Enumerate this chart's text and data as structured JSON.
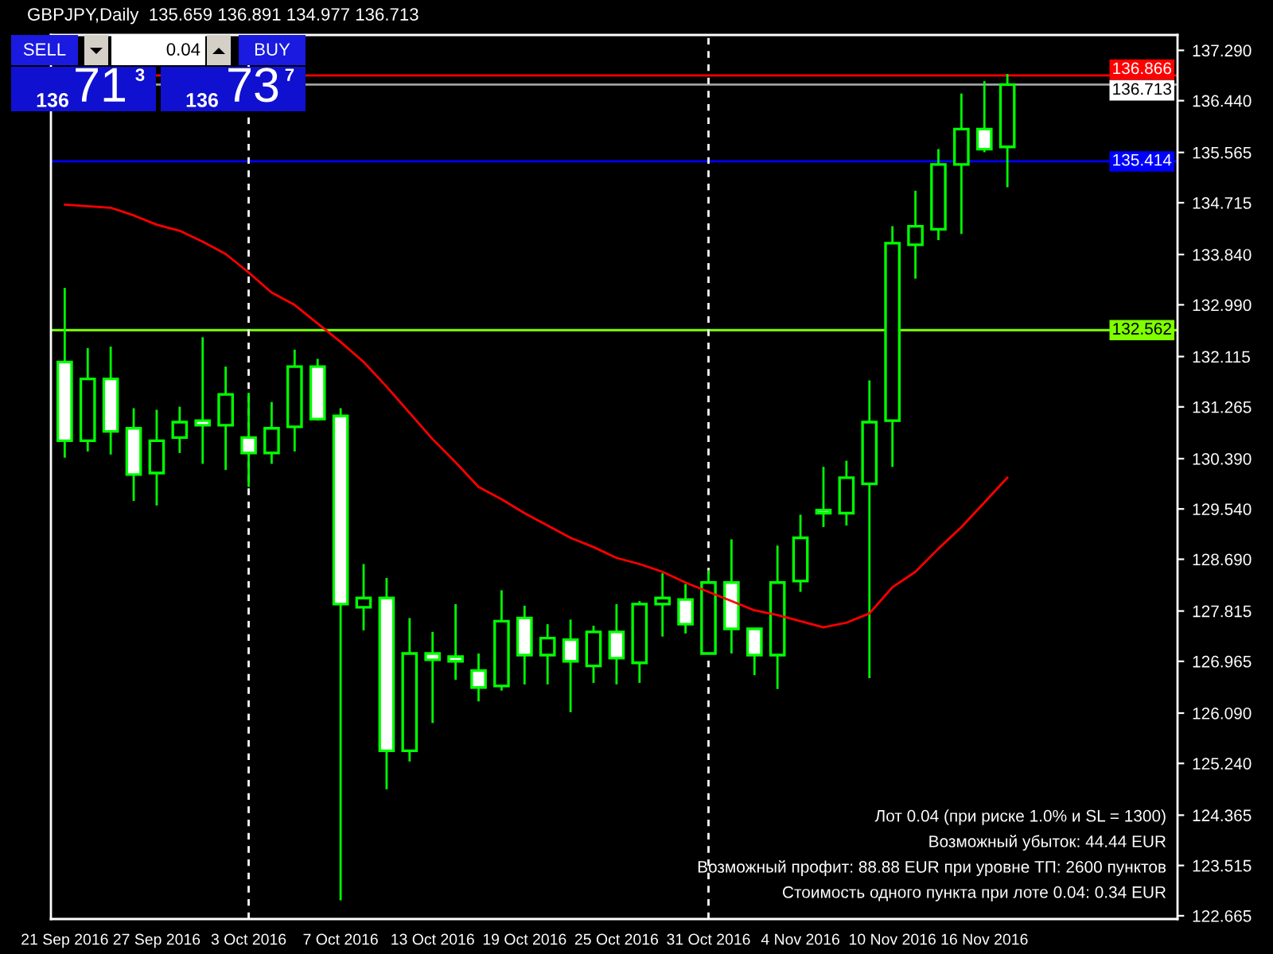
{
  "chart_data": {
    "type": "candlestick",
    "title": "GBPJPY,Daily  135.659 136.891 134.977 136.713",
    "categories": [
      "21 Sep 2016",
      null,
      null,
      null,
      "27 Sep 2016",
      null,
      null,
      null,
      "3 Oct 2016",
      null,
      null,
      null,
      "7 Oct 2016",
      null,
      null,
      null,
      "13 Oct 2016",
      null,
      null,
      null,
      "19 Oct 2016",
      null,
      null,
      null,
      "25 Oct 2016",
      null,
      null,
      null,
      "31 Oct 2016",
      null,
      null,
      null,
      "4 Nov 2016",
      null,
      null,
      null,
      "10 Nov 2016",
      null,
      null,
      null,
      "16 Nov 2016",
      null
    ],
    "series": [
      {
        "color": "#00ff00",
        "ohlc": [
          [
            132.024,
            133.275,
            130.407,
            130.694
          ],
          [
            130.694,
            132.258,
            130.512,
            131.737
          ],
          [
            131.737,
            132.284,
            130.46,
            130.851
          ],
          [
            130.903,
            131.242,
            129.677,
            130.121
          ],
          [
            130.147,
            131.216,
            129.599,
            130.694
          ],
          [
            130.746,
            131.268,
            130.486,
            131.007
          ],
          [
            131.033,
            132.441,
            130.303,
            130.955
          ],
          [
            130.955,
            131.946,
            130.199,
            131.476
          ],
          [
            130.746,
            131.503,
            129.912,
            130.486
          ],
          [
            130.486,
            131.346,
            130.303,
            130.903
          ],
          [
            130.929,
            132.232,
            130.512,
            131.946
          ],
          [
            131.946,
            132.076,
            131.033,
            131.059
          ],
          [
            131.111,
            131.242,
            122.925,
            127.931
          ],
          [
            127.879,
            128.609,
            127.488,
            128.035
          ],
          [
            128.035,
            128.374,
            124.802,
            125.454
          ],
          [
            125.454,
            127.696,
            125.272,
            127.097
          ],
          [
            127.097,
            127.462,
            125.923,
            126.992
          ],
          [
            127.044,
            127.931,
            126.653,
            126.966
          ],
          [
            126.81,
            127.097,
            126.288,
            126.523
          ],
          [
            126.549,
            128.166,
            126.471,
            127.644
          ],
          [
            127.696,
            127.905,
            126.575,
            127.07
          ],
          [
            127.07,
            127.592,
            126.575,
            127.357
          ],
          [
            127.331,
            127.67,
            126.106,
            126.966
          ],
          [
            126.888,
            127.566,
            126.601,
            127.462
          ],
          [
            127.462,
            127.931,
            126.575,
            127.018
          ],
          [
            126.94,
            127.983,
            126.601,
            127.931
          ],
          [
            127.931,
            128.452,
            127.384,
            128.035
          ],
          [
            128.009,
            128.27,
            127.435,
            127.592
          ],
          [
            127.097,
            128.504,
            127.097,
            128.296
          ],
          [
            128.296,
            129.026,
            127.097,
            127.514
          ],
          [
            127.514,
            127.514,
            126.732,
            127.07
          ],
          [
            127.07,
            128.921,
            126.497,
            128.296
          ],
          [
            128.322,
            129.443,
            128.139,
            129.052
          ],
          [
            129.521,
            130.251,
            129.235,
            129.469
          ],
          [
            129.469,
            130.355,
            129.26,
            130.069
          ],
          [
            129.964,
            131.711,
            126.68,
            131.007
          ],
          [
            131.033,
            134.318,
            130.251,
            134.031
          ],
          [
            134.005,
            134.918,
            133.432,
            134.318
          ],
          [
            134.266,
            135.622,
            134.083,
            135.361
          ],
          [
            135.361,
            136.56,
            134.188,
            135.96
          ],
          [
            135.96,
            136.769,
            135.569,
            135.621
          ],
          [
            135.659,
            136.891,
            134.977,
            136.713
          ]
        ]
      },
      {
        "type": "line",
        "color": "#ff0000",
        "values": [
          134.683,
          134.657,
          134.631,
          134.501,
          134.344,
          134.24,
          134.057,
          133.849,
          133.536,
          133.197,
          132.988,
          132.675,
          132.362,
          132.024,
          131.607,
          131.164,
          130.72,
          130.329,
          129.912,
          129.704,
          129.469,
          129.26,
          129.052,
          128.896,
          128.713,
          128.609,
          128.478,
          128.296,
          128.139,
          127.983,
          127.827,
          127.748,
          127.644,
          127.54,
          127.618,
          127.774,
          128.217,
          128.478,
          128.869,
          129.234,
          129.651,
          130.069
        ]
      }
    ],
    "ylim": [
      122.61,
      137.55
    ],
    "yticks": [
      {
        "value": 137.29,
        "label": "137.290"
      },
      {
        "value": 136.44,
        "label": "136.440"
      },
      {
        "value": 135.565,
        "label": "135.565"
      },
      {
        "value": 134.715,
        "label": "134.715"
      },
      {
        "value": 133.84,
        "label": "133.840"
      },
      {
        "value": 132.99,
        "label": "132.990"
      },
      {
        "value": 132.115,
        "label": "132.115"
      },
      {
        "value": 131.265,
        "label": "131.265"
      },
      {
        "value": 130.39,
        "label": "130.390"
      },
      {
        "value": 129.54,
        "label": "129.540"
      },
      {
        "value": 128.69,
        "label": "128.690"
      },
      {
        "value": 127.815,
        "label": "127.815"
      },
      {
        "value": 126.965,
        "label": "126.965"
      },
      {
        "value": 126.09,
        "label": "126.090"
      },
      {
        "value": 125.24,
        "label": "125.240"
      },
      {
        "value": 124.365,
        "label": "124.365"
      },
      {
        "value": 123.515,
        "label": "123.515"
      },
      {
        "value": 122.665,
        "label": "122.665"
      }
    ],
    "ref_lines": [
      {
        "axis": "y",
        "value": 136.866,
        "label": "136.866",
        "color": "#ff0000",
        "line_style": "solid"
      },
      {
        "axis": "y",
        "value": 136.713,
        "label": "136.713",
        "color": "#a0a0a0",
        "line_style": "solid"
      },
      {
        "axis": "y",
        "value": 135.414,
        "label": "135.414",
        "color": "#0000ff",
        "line_style": "solid"
      },
      {
        "axis": "y",
        "value": 132.562,
        "label": "132.562",
        "color": "#7fff00",
        "line_style": "solid"
      },
      {
        "axis": "x",
        "value": "3 Oct 2016",
        "color": "#ffffff",
        "line_style": "dashed"
      },
      {
        "axis": "x",
        "value": "31 Oct 2016",
        "color": "#ffffff",
        "line_style": "dashed"
      }
    ],
    "annotations": [
      "SELL",
      "0.04",
      "BUY",
      "136",
      "71",
      "3",
      "136",
      "73",
      "7",
      "Лот 0.04 (при риске 1.0% и SL = 1300)",
      "Возможный убыток: 44.44 EUR",
      "Возможный профит: 88.88 EUR при уровне ТП: 2600 пунктов",
      "Стоимость одного пункта при лоте 0.04: 0.34 EUR"
    ],
    "grid": false,
    "legend": false
  }
}
